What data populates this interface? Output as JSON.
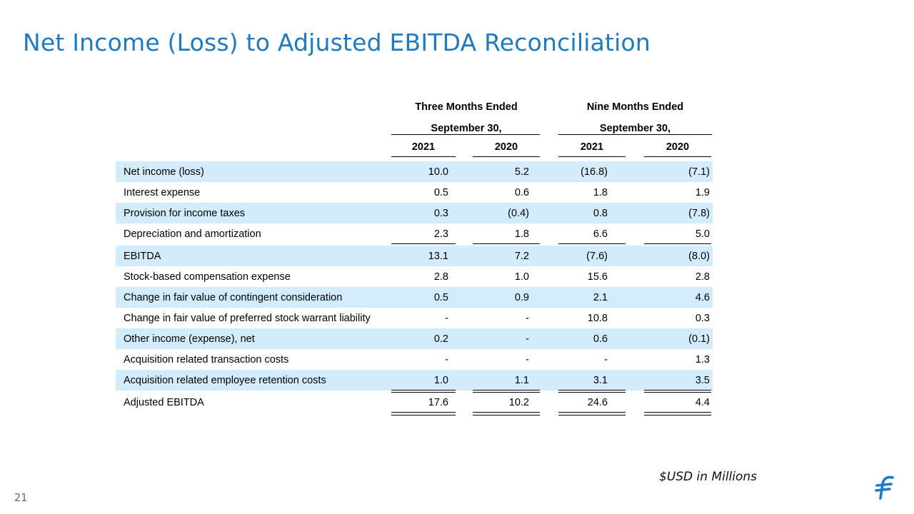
{
  "title": "Net Income (Loss) to Adjusted EBITDA Reconciliation",
  "header": {
    "three_months": "Three Months Ended",
    "nine_months": "Nine Months Ended",
    "period_end_1": "September 30,",
    "period_end_2": "September 30,",
    "years": [
      "2021",
      "2020",
      "2021",
      "2020"
    ]
  },
  "rows": [
    {
      "label": "Net income (loss)",
      "values": [
        "10.0",
        "5.2",
        "(16.8)",
        "(7.1)"
      ]
    },
    {
      "label": "Interest expense",
      "values": [
        "0.5",
        "0.6",
        "1.8",
        "1.9"
      ]
    },
    {
      "label": "Provision for income taxes",
      "values": [
        "0.3",
        "(0.4)",
        "0.8",
        "(7.8)"
      ]
    },
    {
      "label": "Depreciation and amortization",
      "values": [
        "2.3",
        "1.8",
        "6.6",
        "5.0"
      ]
    },
    {
      "label": "EBITDA",
      "values": [
        "13.1",
        "7.2",
        "(7.6)",
        "(8.0)"
      ]
    },
    {
      "label": "Stock-based compensation expense",
      "values": [
        "2.8",
        "1.0",
        "15.6",
        "2.8"
      ]
    },
    {
      "label": "Change in fair value of contingent consideration",
      "values": [
        "0.5",
        "0.9",
        "2.1",
        "4.6"
      ]
    },
    {
      "label": "Change in fair value of preferred stock warrant liability",
      "values": [
        "-",
        "-",
        "10.8",
        "0.3"
      ]
    },
    {
      "label": "Other income (expense), net",
      "values": [
        "0.2",
        "-",
        "0.6",
        "(0.1)"
      ]
    },
    {
      "label": "Acquisition related transaction costs",
      "values": [
        "-",
        "-",
        "-",
        "1.3"
      ]
    },
    {
      "label": "Acquisition related employee retention costs",
      "values": [
        "1.0",
        "1.1",
        "3.1",
        "3.5"
      ]
    },
    {
      "label": "Adjusted EBITDA",
      "values": [
        "17.6",
        "10.2",
        "24.6",
        "4.4"
      ]
    }
  ],
  "footnote": "$USD in Millions",
  "page_number": "21",
  "logo_icon": "fivestar-f-logo-icon",
  "accent_color": "#1b7bc4",
  "shade_color": "#d3ecfb"
}
